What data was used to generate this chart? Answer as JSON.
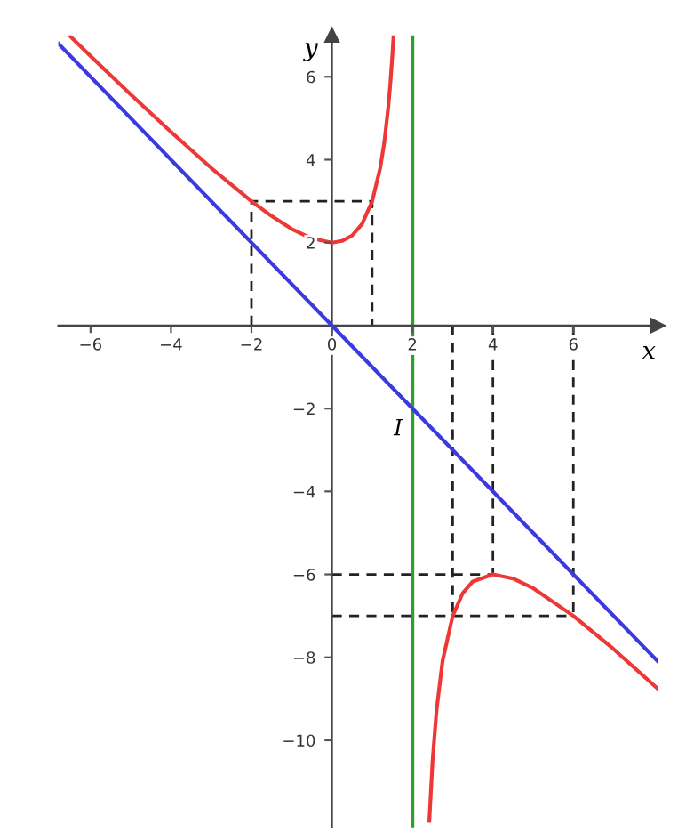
{
  "chart_data": {
    "type": "line",
    "xlabel": "x",
    "ylabel": "y",
    "xlim": [
      -6.8,
      8.1
    ],
    "ylim": [
      -12.1,
      7
    ],
    "xticks": [
      {
        "value": -6,
        "label": "−6"
      },
      {
        "value": -4,
        "label": "−4"
      },
      {
        "value": -2,
        "label": "−2"
      },
      0,
      2,
      4,
      6
    ],
    "yticks": [
      {
        "value": -10,
        "label": "−10"
      },
      {
        "value": -8,
        "label": "−8"
      },
      {
        "value": -6,
        "label": "−6"
      },
      {
        "value": -4,
        "label": "−4"
      },
      {
        "value": -2,
        "label": "−2"
      },
      2,
      4,
      6
    ],
    "grid": false,
    "line_style": "solid",
    "series": [
      {
        "color": "#3a3ae0",
        "x": [
          -6.8,
          8.1
        ],
        "values": [
          6.8,
          -8.1
        ]
      },
      {
        "color": "#ee3838",
        "x": [
          -6.5,
          -6,
          -5,
          -4,
          -3,
          -2,
          -1.5,
          -1,
          -0.5,
          0,
          0.25,
          0.5,
          0.75,
          1,
          1.2,
          1.3,
          1.4,
          1.45,
          1.5,
          1.53,
          2,
          2.42,
          2.5,
          2.6,
          2.75,
          3,
          3.25,
          3.5,
          4,
          4.5,
          5,
          6,
          7,
          8.1
        ],
        "values": [
          6.97,
          6.5,
          5.57,
          4.67,
          3.8,
          3,
          2.64,
          2.33,
          2.1,
          2,
          2.04,
          2.17,
          2.45,
          3,
          3.8,
          4.41,
          5.27,
          5.82,
          6.5,
          6.98,
          null,
          -11.94,
          -10.5,
          -9.27,
          -8.08,
          -7,
          -6.45,
          -6.17,
          -6,
          -6.1,
          -6.33,
          -7,
          -7.8,
          -8.76
        ]
      },
      {
        "color": "#222222",
        "line_style": "dashed",
        "x": [
          -2,
          -2,
          1,
          1
        ],
        "values": [
          0,
          3,
          3,
          0
        ]
      },
      {
        "color": "#222222",
        "line_style": "dashed",
        "x": [
          3,
          3
        ],
        "values": [
          0,
          -7
        ]
      },
      {
        "color": "#222222",
        "line_style": "dashed",
        "x": [
          4,
          4
        ],
        "values": [
          0,
          -6
        ]
      },
      {
        "color": "#222222",
        "line_style": "dashed",
        "x": [
          6,
          6
        ],
        "values": [
          0,
          -7
        ]
      },
      {
        "color": "#222222",
        "line_style": "dashed",
        "x": [
          0,
          4
        ],
        "values": [
          -6,
          -6
        ]
      },
      {
        "color": "#222222",
        "line_style": "dashed",
        "x": [
          0,
          6
        ],
        "values": [
          -7,
          -7
        ]
      }
    ],
    "ref_lines": [
      {
        "axis": "x",
        "value": 2,
        "color": "#2e9e2e"
      }
    ],
    "annotations": [
      {
        "text": "I",
        "x": 2,
        "y": -2
      }
    ]
  }
}
